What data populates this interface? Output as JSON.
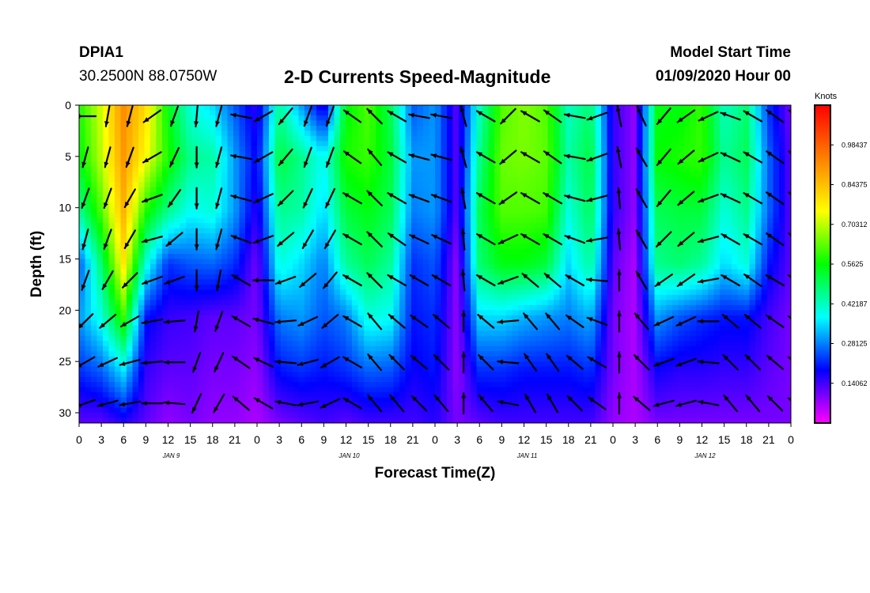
{
  "header": {
    "station_id": "DPIA1",
    "coordinates": "30.2500N 88.0750W",
    "title": "2-D Currents Speed-Magnitude",
    "model_start_label": "Model Start Time",
    "model_start_value": "01/09/2020 Hour 00"
  },
  "colors": {
    "colormap": [
      "#ff00ff",
      "#0000ff",
      "#00ffff",
      "#00ff00",
      "#ffff00",
      "#ff8000",
      "#ff0000"
    ],
    "arrow": "#000000",
    "axis": "#000000"
  },
  "chart_data": {
    "type": "heatmap",
    "title": "2-D Currents Speed-Magnitude",
    "xlabel": "Forecast Time(Z)",
    "ylabel": "Depth (ft)",
    "colorbar_unit": "Knots",
    "colorbar_ticks": [
      0.98437,
      0.84375,
      0.70312,
      0.5625,
      0.42187,
      0.28125,
      0.14062
    ],
    "colorbar_tick_labels": [
      "0.98437",
      "0.84375",
      "0.70312",
      "0.5625",
      "0.42187",
      "0.28125",
      "0.14062"
    ],
    "zlim": [
      0,
      1.125
    ],
    "x_tick_labels": [
      "0",
      "3",
      "6",
      "9",
      "12",
      "15",
      "18",
      "21",
      "0",
      "3",
      "6",
      "9",
      "12",
      "15",
      "18",
      "21",
      "0",
      "3",
      "6",
      "9",
      "12",
      "15",
      "18",
      "21",
      "0",
      "3",
      "6",
      "9",
      "12",
      "15",
      "18",
      "21",
      "0"
    ],
    "day_labels": [
      {
        "label": "JAN 9",
        "hour": 12
      },
      {
        "label": "JAN 10",
        "hour": 36
      },
      {
        "label": "JAN 11",
        "hour": 60
      },
      {
        "label": "JAN 12",
        "hour": 84
      }
    ],
    "xlim_hours": [
      0,
      96
    ],
    "y_ticks": [
      0,
      5,
      10,
      15,
      20,
      25,
      30
    ],
    "ylim": [
      0,
      31
    ],
    "y_inverted": true,
    "depth_levels_ft": [
      0,
      5,
      10,
      15,
      20,
      25,
      30
    ],
    "time_hours": [
      0,
      3,
      6,
      9,
      12,
      15,
      18,
      21,
      24,
      27,
      30,
      33,
      36,
      39,
      42,
      45,
      48,
      51,
      54,
      57,
      60,
      63,
      66,
      69,
      72,
      75,
      78,
      81,
      84,
      87,
      90,
      93,
      96
    ],
    "speed_knots": [
      [
        0.58,
        0.72,
        0.92,
        0.8,
        0.55,
        0.4,
        0.35,
        0.25,
        0.15,
        0.45,
        0.3,
        0.15,
        0.55,
        0.62,
        0.5,
        0.25,
        0.3,
        0.12,
        0.42,
        0.62,
        0.66,
        0.62,
        0.42,
        0.48,
        0.15,
        0.08,
        0.55,
        0.55,
        0.6,
        0.42,
        0.48,
        0.22,
        0.1
      ],
      [
        0.55,
        0.7,
        0.9,
        0.75,
        0.58,
        0.46,
        0.44,
        0.3,
        0.18,
        0.52,
        0.46,
        0.38,
        0.58,
        0.6,
        0.52,
        0.3,
        0.3,
        0.12,
        0.46,
        0.64,
        0.65,
        0.63,
        0.44,
        0.52,
        0.15,
        0.08,
        0.56,
        0.58,
        0.6,
        0.45,
        0.5,
        0.26,
        0.12
      ],
      [
        0.45,
        0.62,
        0.86,
        0.58,
        0.46,
        0.38,
        0.4,
        0.3,
        0.15,
        0.46,
        0.44,
        0.35,
        0.52,
        0.55,
        0.5,
        0.28,
        0.3,
        0.12,
        0.5,
        0.62,
        0.62,
        0.61,
        0.4,
        0.5,
        0.15,
        0.08,
        0.5,
        0.52,
        0.52,
        0.4,
        0.46,
        0.26,
        0.12
      ],
      [
        0.25,
        0.48,
        0.78,
        0.4,
        0.22,
        0.25,
        0.26,
        0.22,
        0.1,
        0.4,
        0.35,
        0.28,
        0.45,
        0.5,
        0.45,
        0.22,
        0.25,
        0.08,
        0.48,
        0.55,
        0.55,
        0.52,
        0.35,
        0.45,
        0.12,
        0.06,
        0.46,
        0.48,
        0.45,
        0.35,
        0.4,
        0.2,
        0.12
      ],
      [
        0.3,
        0.4,
        0.6,
        0.2,
        0.15,
        0.14,
        0.12,
        0.12,
        0.1,
        0.28,
        0.3,
        0.25,
        0.28,
        0.4,
        0.38,
        0.2,
        0.22,
        0.08,
        0.35,
        0.35,
        0.32,
        0.3,
        0.28,
        0.32,
        0.1,
        0.06,
        0.3,
        0.25,
        0.22,
        0.2,
        0.2,
        0.14,
        0.1
      ],
      [
        0.22,
        0.26,
        0.36,
        0.15,
        0.12,
        0.12,
        0.1,
        0.1,
        0.08,
        0.2,
        0.22,
        0.2,
        0.22,
        0.26,
        0.25,
        0.18,
        0.2,
        0.08,
        0.22,
        0.22,
        0.2,
        0.2,
        0.2,
        0.22,
        0.1,
        0.06,
        0.18,
        0.16,
        0.16,
        0.15,
        0.15,
        0.12,
        0.1
      ],
      [
        0.12,
        0.12,
        0.16,
        0.12,
        0.08,
        0.1,
        0.08,
        0.08,
        0.06,
        0.1,
        0.12,
        0.14,
        0.12,
        0.14,
        0.14,
        0.14,
        0.16,
        0.1,
        0.12,
        0.14,
        0.14,
        0.14,
        0.14,
        0.14,
        0.08,
        0.06,
        0.1,
        0.1,
        0.1,
        0.1,
        0.1,
        0.1,
        0.1
      ]
    ],
    "arrow_rows_depth_ft": [
      0,
      4,
      8,
      12,
      16,
      20,
      24,
      28
    ],
    "arrow_direction_deg": [
      [
        270,
        190,
        195,
        235,
        200,
        185,
        195,
        280,
        240,
        220,
        200,
        200,
        305,
        315,
        300,
        280,
        280,
        345,
        300,
        225,
        300,
        305,
        280,
        250,
        350,
        335,
        220,
        235,
        245,
        290,
        300,
        305,
        305
      ],
      [
        195,
        195,
        200,
        240,
        205,
        180,
        195,
        280,
        240,
        220,
        200,
        200,
        305,
        320,
        300,
        285,
        285,
        345,
        300,
        230,
        300,
        305,
        280,
        250,
        350,
        330,
        220,
        230,
        245,
        295,
        300,
        305,
        305
      ],
      [
        200,
        200,
        210,
        250,
        215,
        180,
        195,
        285,
        245,
        225,
        205,
        205,
        300,
        315,
        300,
        290,
        290,
        350,
        300,
        235,
        300,
        300,
        285,
        255,
        355,
        330,
        220,
        230,
        250,
        295,
        300,
        305,
        305
      ],
      [
        195,
        200,
        210,
        255,
        230,
        180,
        195,
        290,
        250,
        230,
        210,
        210,
        300,
        315,
        305,
        295,
        295,
        355,
        300,
        245,
        300,
        300,
        290,
        260,
        355,
        330,
        225,
        230,
        255,
        300,
        300,
        305,
        305
      ],
      [
        200,
        210,
        225,
        250,
        250,
        180,
        190,
        300,
        270,
        250,
        230,
        220,
        300,
        315,
        300,
        300,
        300,
        355,
        300,
        250,
        310,
        310,
        300,
        275,
        360,
        330,
        235,
        235,
        260,
        300,
        305,
        300,
        300
      ],
      [
        225,
        230,
        240,
        260,
        265,
        190,
        200,
        300,
        285,
        265,
        245,
        230,
        300,
        320,
        310,
        305,
        310,
        360,
        310,
        265,
        320,
        320,
        305,
        290,
        360,
        320,
        245,
        245,
        270,
        310,
        310,
        305,
        300
      ],
      [
        240,
        245,
        255,
        265,
        270,
        200,
        205,
        305,
        295,
        275,
        255,
        240,
        300,
        320,
        315,
        310,
        315,
        360,
        315,
        275,
        325,
        325,
        310,
        300,
        360,
        315,
        250,
        250,
        275,
        315,
        315,
        310,
        300
      ],
      [
        250,
        255,
        260,
        270,
        275,
        205,
        210,
        310,
        300,
        280,
        260,
        245,
        300,
        320,
        320,
        315,
        320,
        360,
        320,
        280,
        330,
        330,
        315,
        305,
        360,
        310,
        255,
        255,
        280,
        320,
        320,
        315,
        300
      ]
    ]
  }
}
